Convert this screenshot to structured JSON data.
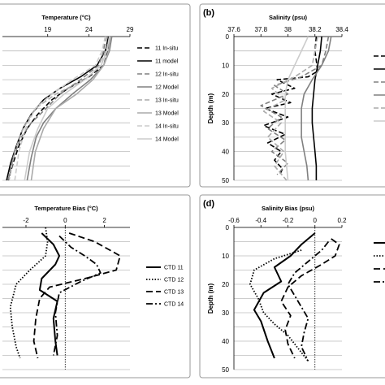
{
  "chart_data": [
    {
      "id": "a",
      "type": "line",
      "panel_label": "",
      "title": "Temperature (°C)",
      "x_ticks": [
        19,
        24,
        29
      ],
      "xlim": [
        13.5,
        29
      ],
      "ylim": [
        0,
        50
      ],
      "y_ticks": [],
      "ylabel": "",
      "legend_position": "right",
      "series": [
        {
          "name": "11 In-situ",
          "color": "#000000",
          "dash": "6,3",
          "width": 1.6,
          "x": [
            26.5,
            26.3,
            25.8,
            24.0,
            21.5,
            19.5,
            17.8,
            16.5,
            15.5,
            14.8,
            14.2
          ],
          "y": [
            0,
            5,
            10,
            14,
            18,
            22,
            27,
            32,
            38,
            44,
            50
          ]
        },
        {
          "name": "11 model",
          "color": "#000000",
          "dash": "",
          "width": 1.6,
          "x": [
            26.4,
            26.0,
            25.0,
            23.0,
            20.5,
            18.5,
            17.0,
            16.0,
            15.2,
            14.5,
            14.0
          ],
          "y": [
            0,
            5,
            10,
            14,
            18,
            22,
            27,
            32,
            38,
            44,
            50
          ]
        },
        {
          "name": "12 In-situ",
          "color": "#808080",
          "dash": "6,3",
          "width": 1.6,
          "x": [
            26.0,
            25.8,
            25.2,
            23.0,
            20.5,
            18.8,
            17.0,
            15.8,
            14.8,
            14.2
          ],
          "y": [
            0,
            5,
            10,
            15,
            20,
            25,
            30,
            35,
            42,
            50
          ]
        },
        {
          "name": "12 Model",
          "color": "#808080",
          "dash": "",
          "width": 1.6,
          "x": [
            26.8,
            26.5,
            25.8,
            24.2,
            22.0,
            20.0,
            18.5,
            17.6,
            17.0,
            16.5
          ],
          "y": [
            0,
            5,
            10,
            15,
            20,
            25,
            30,
            35,
            42,
            50
          ]
        },
        {
          "name": "13 In-situ",
          "color": "#aaaaaa",
          "dash": "6,3",
          "width": 1.6,
          "x": [
            26.2,
            26.0,
            25.5,
            23.5,
            20.0,
            17.5,
            16.0,
            15.0,
            14.3
          ],
          "y": [
            0,
            5,
            10,
            15,
            20,
            25,
            32,
            40,
            50
          ]
        },
        {
          "name": "13 Model",
          "color": "#aaaaaa",
          "dash": "",
          "width": 1.6,
          "x": [
            26.6,
            26.4,
            25.8,
            24.5,
            22.5,
            20.0,
            18.5,
            17.5,
            17.0
          ],
          "y": [
            0,
            5,
            10,
            15,
            20,
            25,
            32,
            40,
            50
          ]
        },
        {
          "name": "14 In-situ",
          "color": "#cccccc",
          "dash": "6,3",
          "width": 1.6,
          "x": [
            26.0,
            25.6,
            24.8,
            22.0,
            19.5,
            17.5,
            16.3,
            15.5,
            15.0
          ],
          "y": [
            0,
            5,
            10,
            15,
            20,
            25,
            32,
            40,
            50
          ]
        },
        {
          "name": "14 Model",
          "color": "#cccccc",
          "dash": "",
          "width": 1.6,
          "x": [
            26.5,
            26.2,
            25.5,
            23.5,
            21.0,
            19.0,
            17.8,
            16.8,
            16.2
          ],
          "y": [
            0,
            5,
            10,
            15,
            20,
            25,
            32,
            40,
            50
          ]
        }
      ]
    },
    {
      "id": "b",
      "type": "line",
      "panel_label": "(b)",
      "title": "Salinity (psu)",
      "x_ticks": [
        37.6,
        37.8,
        38,
        38.2,
        38.4
      ],
      "xlim": [
        37.6,
        38.4
      ],
      "ylim": [
        0,
        50
      ],
      "y_ticks": [
        0,
        10,
        20,
        30,
        40,
        50
      ],
      "ylabel": "Depth (m)",
      "legend_position": "right",
      "series": [
        {
          "name": "",
          "color": "#000000",
          "dash": "6,3",
          "width": 1.6,
          "x": [
            38.21,
            38.2,
            38.22,
            38.15,
            37.92,
            38.05,
            37.88,
            38.02,
            37.83,
            38.0,
            37.82,
            37.98,
            37.85,
            37.95,
            37.9,
            37.96,
            37.94
          ],
          "y": [
            0,
            5,
            12,
            14,
            15,
            18,
            20,
            23,
            25,
            28,
            31,
            34,
            37,
            40,
            43,
            46,
            48
          ]
        },
        {
          "name": "",
          "color": "#000000",
          "dash": "",
          "width": 1.6,
          "x": [
            38.25,
            38.24,
            38.22,
            38.2,
            38.19,
            38.18,
            38.18,
            38.19,
            38.2,
            38.21,
            38.21
          ],
          "y": [
            0,
            5,
            10,
            15,
            20,
            25,
            30,
            35,
            40,
            45,
            50
          ]
        },
        {
          "name": "",
          "color": "#808080",
          "dash": "6,3",
          "width": 1.6,
          "x": [
            38.3,
            38.28,
            38.25,
            38.1,
            37.9,
            38.0,
            37.8,
            37.95,
            37.85,
            37.98,
            37.88,
            38.0,
            37.92
          ],
          "y": [
            0,
            5,
            10,
            14,
            17,
            20,
            24,
            28,
            32,
            36,
            40,
            44,
            48
          ]
        },
        {
          "name": "",
          "color": "#808080",
          "dash": "",
          "width": 1.6,
          "x": [
            38.32,
            38.3,
            38.25,
            38.18,
            38.12,
            38.1,
            38.1,
            38.1,
            38.12,
            38.14,
            38.15
          ],
          "y": [
            0,
            5,
            10,
            15,
            20,
            25,
            30,
            35,
            40,
            45,
            50
          ]
        },
        {
          "name": "",
          "color": "#aaaaaa",
          "dash": "6,3",
          "width": 1.6,
          "x": [
            38.22,
            38.2,
            38.18,
            38.05,
            37.88,
            37.98,
            37.82,
            37.95,
            37.85,
            37.97,
            37.9,
            37.99
          ],
          "y": [
            0,
            5,
            10,
            14,
            18,
            22,
            26,
            30,
            35,
            40,
            45,
            50
          ]
        },
        {
          "name": "",
          "color": "#cccccc",
          "dash": "",
          "width": 1.6,
          "x": [
            38.15,
            38.1,
            38.05,
            38.0,
            37.98,
            37.98,
            37.98,
            37.98,
            37.98,
            37.99,
            38.0
          ],
          "y": [
            0,
            5,
            10,
            15,
            20,
            25,
            30,
            35,
            40,
            45,
            50
          ]
        }
      ]
    },
    {
      "id": "c",
      "type": "line",
      "panel_label": "",
      "title": "Temperature Bias (°C)",
      "x_ticks": [
        -2,
        0,
        2
      ],
      "x_tick_labels": [
        "-2",
        "0",
        "2"
      ],
      "xlim": [
        -3.2,
        3.3
      ],
      "ylim": [
        0,
        50
      ],
      "y_ticks": [],
      "ylabel": "",
      "legend_position": "right",
      "series": [
        {
          "name": "CTD 11",
          "color": "#000000",
          "dash": "",
          "width": 2,
          "x": [
            -1.2,
            -0.6,
            -0.3,
            -0.5,
            -1.2,
            -1.3,
            -0.4,
            -0.6,
            -0.5,
            -0.4
          ],
          "y": [
            2,
            6,
            10,
            13,
            18,
            22,
            26,
            32,
            40,
            45
          ]
        },
        {
          "name": "CTD 12",
          "color": "#000000",
          "dash": "1.5,2",
          "width": 1.8,
          "x": [
            -1.0,
            -0.9,
            -1.0,
            -1.8,
            -2.5,
            -2.8,
            -2.7,
            -2.5,
            -2.3
          ],
          "y": [
            0,
            5,
            10,
            15,
            20,
            28,
            35,
            42,
            46
          ]
        },
        {
          "name": "CTD 13",
          "color": "#000000",
          "dash": "8,4",
          "width": 1.8,
          "x": [
            0.2,
            1.5,
            2.8,
            2.6,
            1.0,
            -0.8,
            -1.3,
            -1.5,
            -1.6,
            -1.4
          ],
          "y": [
            2,
            5,
            10,
            15,
            18,
            21,
            25,
            32,
            40,
            46
          ]
        },
        {
          "name": "CTD 14",
          "color": "#000000",
          "dash": "8,3,2,3",
          "width": 1.8,
          "x": [
            -0.3,
            0.3,
            1.0,
            1.6,
            1.8,
            0.8,
            -0.3,
            -0.5,
            -0.4,
            -0.6
          ],
          "y": [
            3,
            7,
            10,
            13,
            16,
            19,
            23,
            30,
            38,
            45
          ]
        }
      ]
    },
    {
      "id": "d",
      "type": "line",
      "panel_label": "(d)",
      "title": "Salinity Bias (psu)",
      "x_ticks": [
        -0.6,
        -0.4,
        -0.2,
        0,
        0.2
      ],
      "x_tick_labels": [
        "-0.6",
        "-0.4",
        "-0.2",
        "0",
        "0.2"
      ],
      "xlim": [
        -0.6,
        0.2
      ],
      "ylim": [
        0,
        50
      ],
      "y_ticks": [
        0,
        10,
        20,
        30,
        40,
        50
      ],
      "ylabel": "Depth (m)",
      "legend_position": "right",
      "series": [
        {
          "name": "",
          "color": "#000000",
          "dash": "",
          "width": 2,
          "x": [
            0.0,
            -0.1,
            -0.18,
            -0.3,
            -0.25,
            -0.38,
            -0.45,
            -0.4,
            -0.35,
            -0.3
          ],
          "y": [
            2,
            6,
            10,
            14,
            19,
            23,
            29,
            33,
            40,
            46
          ]
        },
        {
          "name": "",
          "color": "#000000",
          "dash": "1.5,2",
          "width": 1.8,
          "x": [
            -0.1,
            -0.3,
            -0.45,
            -0.48,
            -0.42,
            -0.38,
            -0.3,
            -0.2,
            -0.15,
            -0.1,
            -0.05
          ],
          "y": [
            8,
            11,
            15,
            20,
            25,
            30,
            34,
            38,
            41,
            44,
            47
          ]
        },
        {
          "name": "",
          "color": "#000000",
          "dash": "8,4",
          "width": 1.8,
          "x": [
            0.12,
            0.18,
            0.15,
            0.05,
            -0.1,
            -0.2,
            -0.25,
            -0.18,
            -0.22,
            -0.2,
            -0.15
          ],
          "y": [
            4,
            6,
            10,
            13,
            17,
            21,
            26,
            31,
            36,
            41,
            46
          ]
        },
        {
          "name": "",
          "color": "#000000",
          "dash": "8,3,2,3",
          "width": 1.8,
          "x": [
            0.1,
            0.05,
            -0.05,
            -0.15,
            -0.2,
            -0.15,
            -0.1,
            -0.05,
            -0.08,
            -0.1,
            -0.05
          ],
          "y": [
            5,
            8,
            12,
            16,
            20,
            24,
            28,
            32,
            37,
            42,
            47
          ]
        }
      ]
    }
  ]
}
